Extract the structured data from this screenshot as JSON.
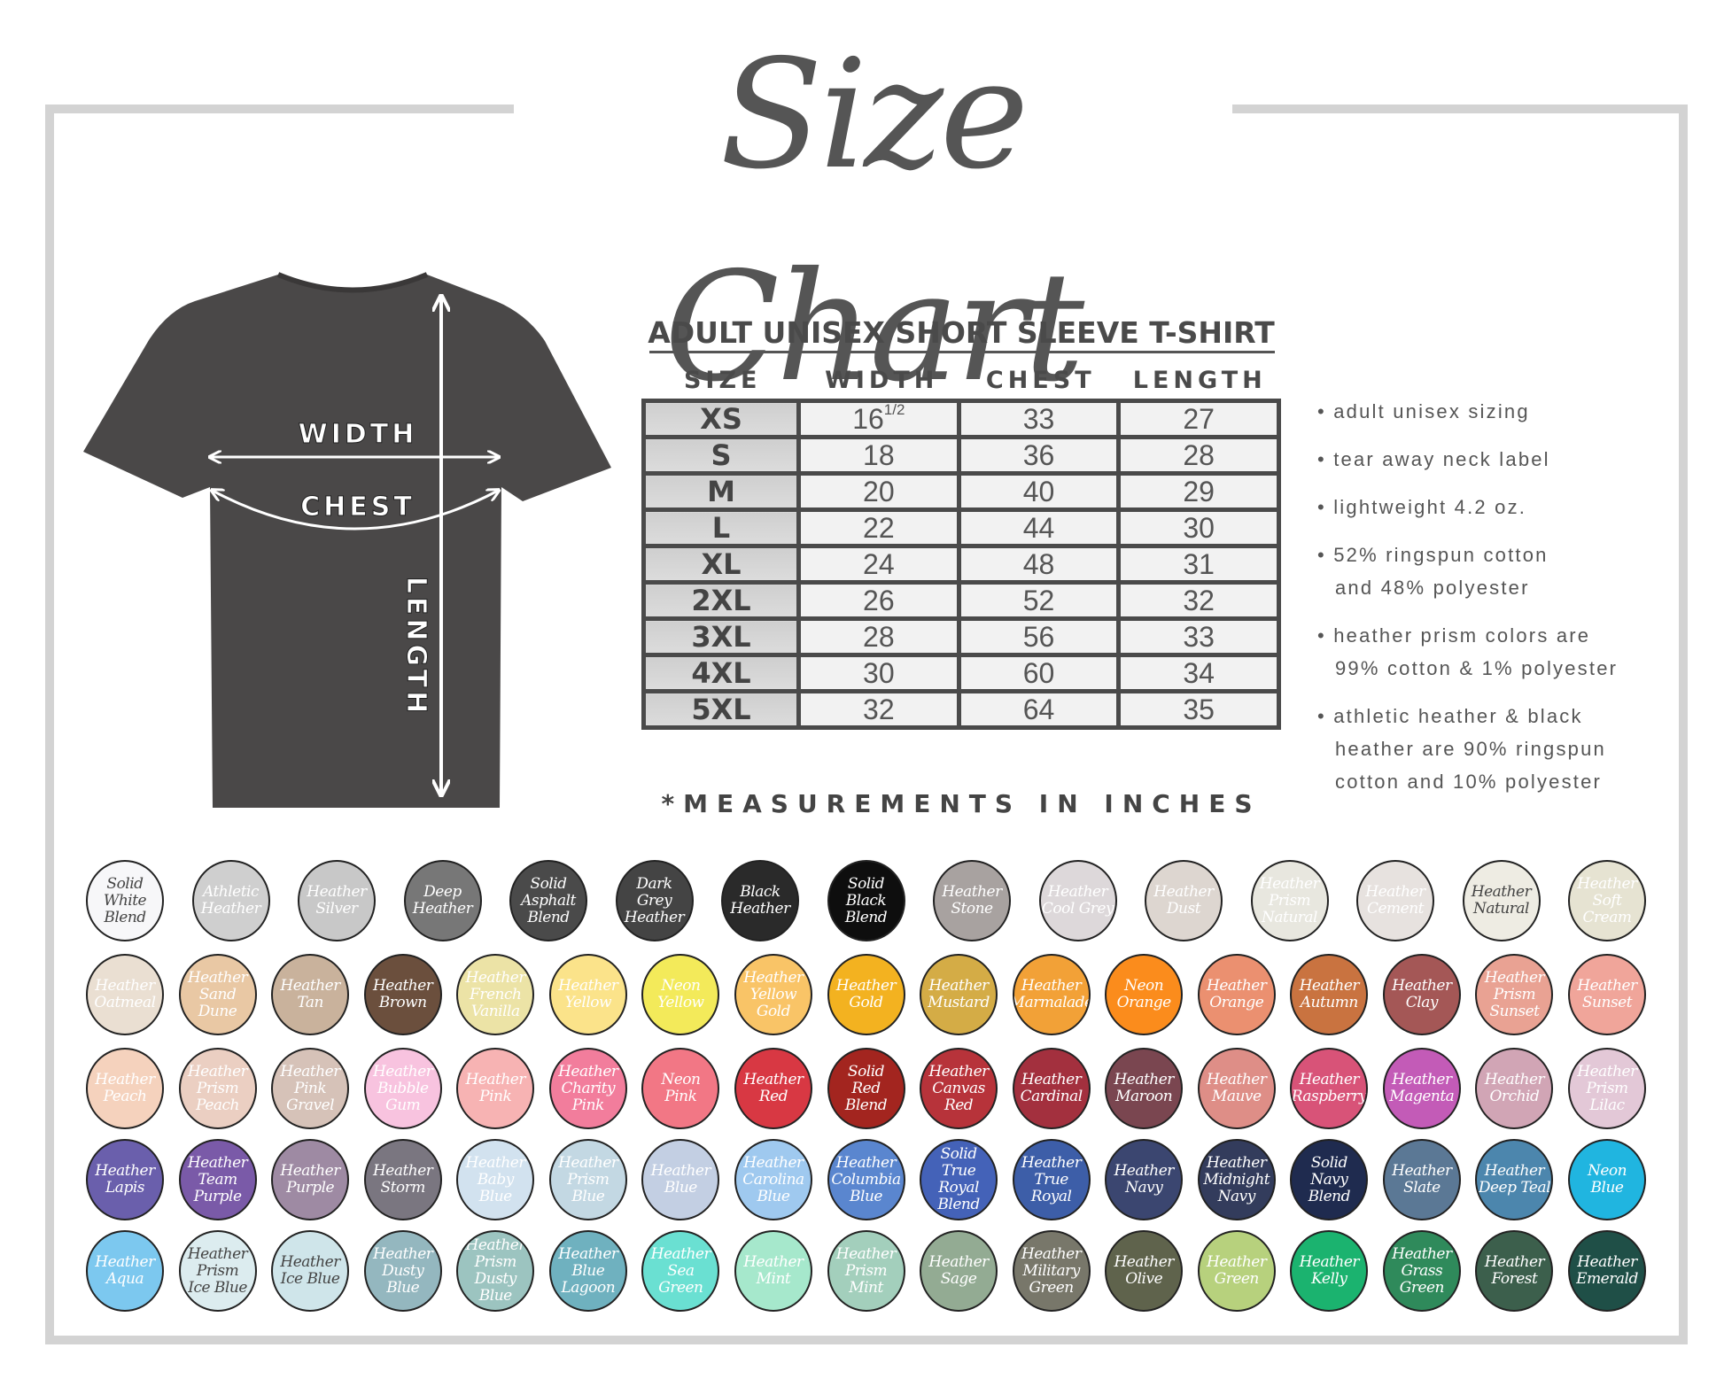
{
  "title": "Size Chart",
  "shirt": {
    "width_label": "WIDTH",
    "chest_label": "CHEST",
    "length_label": "LENGTH",
    "color": "#4a4848"
  },
  "table": {
    "title": "ADULT UNISEX SHORT SLEEVE T-SHIRT",
    "headers": [
      "SIZE",
      "WIDTH",
      "CHEST",
      "LENGTH"
    ],
    "rows": [
      {
        "size": "XS",
        "width": "16",
        "width_fraction": "1/2",
        "chest": "33",
        "length": "27"
      },
      {
        "size": "S",
        "width": "18",
        "chest": "36",
        "length": "28"
      },
      {
        "size": "M",
        "width": "20",
        "chest": "40",
        "length": "29"
      },
      {
        "size": "L",
        "width": "22",
        "chest": "44",
        "length": "30"
      },
      {
        "size": "XL",
        "width": "24",
        "chest": "48",
        "length": "31"
      },
      {
        "size": "2XL",
        "width": "26",
        "chest": "52",
        "length": "32"
      },
      {
        "size": "3XL",
        "width": "28",
        "chest": "56",
        "length": "33"
      },
      {
        "size": "4XL",
        "width": "30",
        "chest": "60",
        "length": "34"
      },
      {
        "size": "5XL",
        "width": "32",
        "chest": "64",
        "length": "35"
      }
    ],
    "footnote": "*MEASUREMENTS IN INCHES"
  },
  "features": [
    "• adult unisex sizing",
    "• tear away neck label",
    "• lightweight 4.2 oz.",
    "• 52% ringspun cotton\nand 48% polyester",
    "• heather prism colors are\n99% cotton & 1% polyester",
    "• athletic heather &  black\nheather are 90% ringspun\ncotton and 10% polyester"
  ],
  "swatch_rows": [
    [
      {
        "name": "Solid\nWhite\nBlend",
        "color": "#f7f7f9",
        "text": "#444"
      },
      {
        "name": "Athletic\nHeather",
        "color": "#cfcfcf"
      },
      {
        "name": "Heather\nSilver",
        "color": "#c8c8c8"
      },
      {
        "name": "Deep\nHeather",
        "color": "#777777"
      },
      {
        "name": "Solid\nAsphalt\nBlend",
        "color": "#4a4a4a"
      },
      {
        "name": "Dark\nGrey\nHeather",
        "color": "#444444"
      },
      {
        "name": "Black\nHeather",
        "color": "#2a2a2a"
      },
      {
        "name": "Solid\nBlack\nBlend",
        "color": "#0e0e0e"
      },
      {
        "name": "Heather\nStone",
        "color": "#a8a2a0"
      },
      {
        "name": "Heather\nCool Grey",
        "color": "#ddd8da"
      },
      {
        "name": "Heather\nDust",
        "color": "#ddd6d0"
      },
      {
        "name": "Heather\nPrism\nNatural",
        "color": "#e8e7df"
      },
      {
        "name": "Heather\nCement",
        "color": "#e7e2df"
      },
      {
        "name": "Heather\nNatural",
        "color": "#eeece3",
        "text": "#444"
      },
      {
        "name": "Heather\nSoft Cream",
        "color": "#e6e3d2"
      }
    ],
    [
      {
        "name": "Heather\nOatmeal",
        "color": "#eadfd2"
      },
      {
        "name": "Heather\nSand\nDune",
        "color": "#e9c8a4"
      },
      {
        "name": "Heather\nTan",
        "color": "#c9b29c"
      },
      {
        "name": "Heather\nBrown",
        "color": "#6b4f3d"
      },
      {
        "name": "Heather\nFrench\nVanilla",
        "color": "#ece3a6"
      },
      {
        "name": "Heather\nYellow",
        "color": "#fbe38a"
      },
      {
        "name": "Neon\nYellow",
        "color": "#f3ea5a"
      },
      {
        "name": "Heather\nYellow\nGold",
        "color": "#f9c467"
      },
      {
        "name": "Heather\nGold",
        "color": "#f3b220"
      },
      {
        "name": "Heather\nMustard",
        "color": "#d4ac46"
      },
      {
        "name": "Heather\nMarmalade",
        "color": "#f2a137"
      },
      {
        "name": "Neon\nOrange",
        "color": "#fb8c1c"
      },
      {
        "name": "Heather\nOrange",
        "color": "#eb9070"
      },
      {
        "name": "Heather\nAutumn",
        "color": "#c97340"
      },
      {
        "name": "Heather\nClay",
        "color": "#a45756"
      },
      {
        "name": "Heather\nPrism\nSunset",
        "color": "#e9a293"
      },
      {
        "name": "Heather\nSunset",
        "color": "#f0a59a"
      }
    ],
    [
      {
        "name": "Heather\nPeach",
        "color": "#f5d2bd"
      },
      {
        "name": "Heather\nPrism\nPeach",
        "color": "#ebcfc2"
      },
      {
        "name": "Heather\nPink\nGravel",
        "color": "#d6c2b8"
      },
      {
        "name": "Heather\nBubble\nGum",
        "color": "#f8c3df"
      },
      {
        "name": "Heather\nPink",
        "color": "#f7b3b3"
      },
      {
        "name": "Heather\nCharity\nPink",
        "color": "#f27d9c"
      },
      {
        "name": "Neon\nPink",
        "color": "#f27785"
      },
      {
        "name": "Heather\nRed",
        "color": "#d83843"
      },
      {
        "name": "Solid\nRed\nBlend",
        "color": "#a3251f"
      },
      {
        "name": "Heather\nCanvas\nRed",
        "color": "#b7333a"
      },
      {
        "name": "Heather\nCardinal",
        "color": "#a3303e"
      },
      {
        "name": "Heather\nMaroon",
        "color": "#7a4650"
      },
      {
        "name": "Heather\nMauve",
        "color": "#de8e87"
      },
      {
        "name": "Heather\nRaspberry",
        "color": "#d85378"
      },
      {
        "name": "Heather\nMagenta",
        "color": "#c35bb7"
      },
      {
        "name": "Heather\nOrchid",
        "color": "#d1a5b5"
      },
      {
        "name": "Heather\nPrism\nLilac",
        "color": "#e3c8d7"
      }
    ],
    [
      {
        "name": "Heather\nLapis",
        "color": "#6a5fac"
      },
      {
        "name": "Heather\nTeam\nPurple",
        "color": "#7a5aa8"
      },
      {
        "name": "Heather\nPurple",
        "color": "#9e8aa3"
      },
      {
        "name": "Heather\nStorm",
        "color": "#7a7680"
      },
      {
        "name": "Heather\nBaby\nBlue",
        "color": "#d2e2ef"
      },
      {
        "name": "Heather\nPrism\nBlue",
        "color": "#c3d8e3"
      },
      {
        "name": "Heather\nBlue",
        "color": "#c3cfe3"
      },
      {
        "name": "Heather\nCarolina\nBlue",
        "color": "#9fc9ef"
      },
      {
        "name": "Heather\nColumbia\nBlue",
        "color": "#5a86cf"
      },
      {
        "name": "Solid\nTrue Royal\nBlend",
        "color": "#4462b8"
      },
      {
        "name": "Heather\nTrue\nRoyal",
        "color": "#3d5ea8"
      },
      {
        "name": "Heather\nNavy",
        "color": "#3b4670"
      },
      {
        "name": "Heather\nMidnight\nNavy",
        "color": "#333c5c"
      },
      {
        "name": "Solid\nNavy\nBlend",
        "color": "#1f2b4f"
      },
      {
        "name": "Heather\nSlate",
        "color": "#5b7895"
      },
      {
        "name": "Heather\nDeep Teal",
        "color": "#4c86ad"
      },
      {
        "name": "Neon\nBlue",
        "color": "#20b5e0"
      }
    ],
    [
      {
        "name": "Heather\nAqua",
        "color": "#7cc8ef"
      },
      {
        "name": "Heather\nPrism\nIce Blue",
        "color": "#dcecef",
        "text": "#444"
      },
      {
        "name": "Heather\nIce Blue",
        "color": "#cfe5ea",
        "text": "#444"
      },
      {
        "name": "Heather\nDusty\nBlue",
        "color": "#94b7bf"
      },
      {
        "name": "Heather\nPrism\nDusty Blue",
        "color": "#9cc4c0"
      },
      {
        "name": "Heather\nBlue\nLagoon",
        "color": "#6fb1bf"
      },
      {
        "name": "Heather\nSea Green",
        "color": "#6ae0d2"
      },
      {
        "name": "Heather\nMint",
        "color": "#a6e8cc"
      },
      {
        "name": "Heather\nPrism\nMint",
        "color": "#a3cfbc"
      },
      {
        "name": "Heather\nSage",
        "color": "#93ab93"
      },
      {
        "name": "Heather\nMilitary\nGreen",
        "color": "#78776a"
      },
      {
        "name": "Heather\nOlive",
        "color": "#5f634c"
      },
      {
        "name": "Heather\nGreen",
        "color": "#b7d17d"
      },
      {
        "name": "Heather\nKelly",
        "color": "#1bb36f"
      },
      {
        "name": "Heather\nGrass\nGreen",
        "color": "#2f8a5b"
      },
      {
        "name": "Heather\nForest",
        "color": "#3c5f4c"
      },
      {
        "name": "Heather\nEmerald",
        "color": "#1f4f47"
      }
    ]
  ]
}
